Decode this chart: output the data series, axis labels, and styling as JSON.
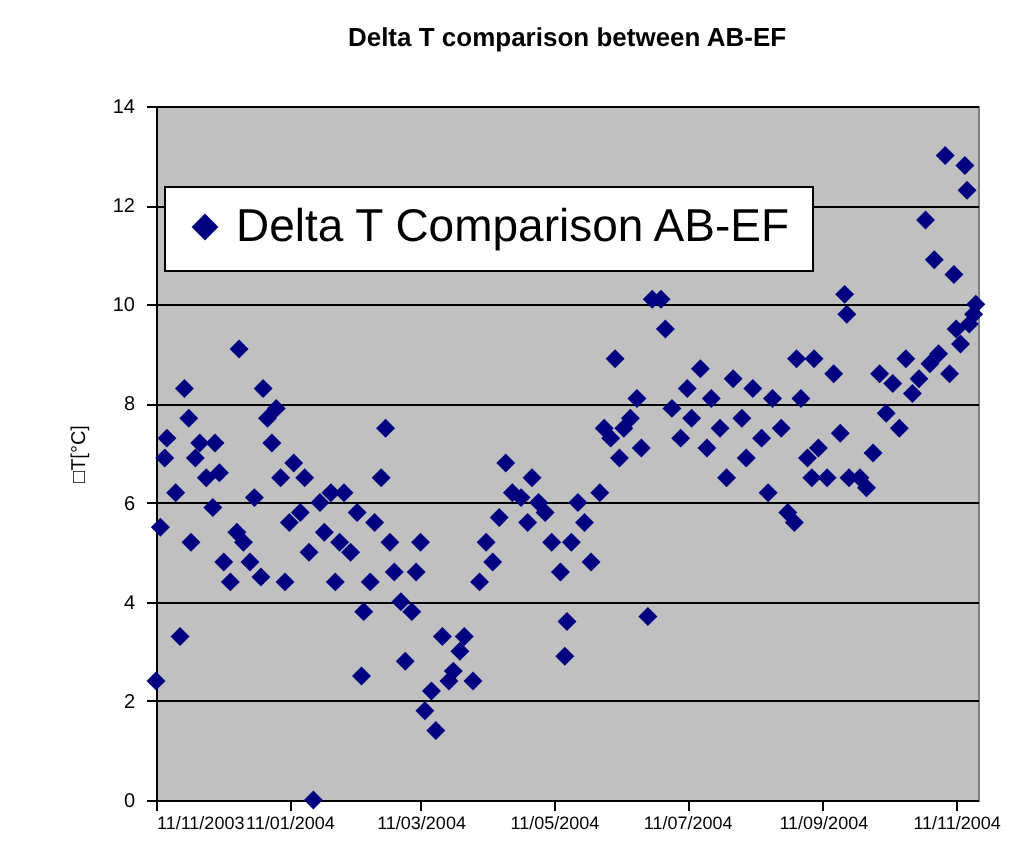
{
  "chart_data": {
    "type": "scatter",
    "title": "Delta T comparison between AB-EF",
    "ylabel": "□T[°C]",
    "xlim": [
      "2003-11-11",
      "2004-11-21"
    ],
    "xticks": [
      {
        "value": "2003-11-11",
        "label": "11/11/2003"
      },
      {
        "value": "2004-01-11",
        "label": "11/01/2004"
      },
      {
        "value": "2004-03-11",
        "label": "11/03/2004"
      },
      {
        "value": "2004-05-11",
        "label": "11/05/2004"
      },
      {
        "value": "2004-07-11",
        "label": "11/07/2004"
      },
      {
        "value": "2004-09-11",
        "label": "11/09/2004"
      },
      {
        "value": "2004-11-11",
        "label": "11/11/2004"
      }
    ],
    "ylim": [
      0,
      14
    ],
    "yticks": [
      0,
      2,
      4,
      6,
      8,
      10,
      12,
      14
    ],
    "grid": "y",
    "legend": "top left",
    "marker": "diamond",
    "series": [
      {
        "name": "Delta T Comparison AB-EF",
        "color": "#000080",
        "x": [
          "2003-11-11",
          "2003-11-13",
          "2003-11-15",
          "2003-11-16",
          "2003-11-20",
          "2003-11-22",
          "2003-11-24",
          "2003-11-26",
          "2003-11-27",
          "2003-11-29",
          "2003-12-01",
          "2003-12-04",
          "2003-12-07",
          "2003-12-08",
          "2003-12-10",
          "2003-12-12",
          "2003-12-15",
          "2003-12-18",
          "2003-12-19",
          "2003-12-21",
          "2003-12-24",
          "2003-12-26",
          "2003-12-29",
          "2003-12-30",
          "2004-01-01",
          "2004-01-03",
          "2004-01-05",
          "2004-01-07",
          "2004-01-09",
          "2004-01-11",
          "2004-01-13",
          "2004-01-16",
          "2004-01-18",
          "2004-01-20",
          "2004-01-22",
          "2004-01-25",
          "2004-01-27",
          "2004-01-30",
          "2004-02-01",
          "2004-02-03",
          "2004-02-05",
          "2004-02-08",
          "2004-02-11",
          "2004-02-13",
          "2004-02-14",
          "2004-02-17",
          "2004-02-19",
          "2004-02-22",
          "2004-02-24",
          "2004-02-26",
          "2004-02-28",
          "2004-03-02",
          "2004-03-04",
          "2004-03-07",
          "2004-03-09",
          "2004-03-11",
          "2004-03-13",
          "2004-03-16",
          "2004-03-18",
          "2004-03-21",
          "2004-03-24",
          "2004-03-26",
          "2004-03-29",
          "2004-03-31",
          "2004-04-04",
          "2004-04-07",
          "2004-04-10",
          "2004-04-13",
          "2004-04-16",
          "2004-04-19",
          "2004-04-22",
          "2004-04-26",
          "2004-04-29",
          "2004-05-01",
          "2004-05-04",
          "2004-05-07",
          "2004-05-10",
          "2004-05-14",
          "2004-05-16",
          "2004-05-17",
          "2004-05-19",
          "2004-05-22",
          "2004-05-25",
          "2004-05-28",
          "2004-06-01",
          "2004-06-03",
          "2004-06-06",
          "2004-06-08",
          "2004-06-10",
          "2004-06-12",
          "2004-06-15",
          "2004-06-18",
          "2004-06-20",
          "2004-06-23",
          "2004-06-25",
          "2004-06-29",
          "2004-07-01",
          "2004-07-04",
          "2004-07-08",
          "2004-07-11",
          "2004-07-13",
          "2004-07-17",
          "2004-07-20",
          "2004-07-22",
          "2004-07-26",
          "2004-07-29",
          "2004-08-01",
          "2004-08-05",
          "2004-08-07",
          "2004-08-10",
          "2004-08-14",
          "2004-08-17",
          "2004-08-19",
          "2004-08-23",
          "2004-08-26",
          "2004-08-29",
          "2004-08-30",
          "2004-09-01",
          "2004-09-04",
          "2004-09-06",
          "2004-09-07",
          "2004-09-09",
          "2004-09-13",
          "2004-09-16",
          "2004-09-19",
          "2004-09-21",
          "2004-09-22",
          "2004-09-23",
          "2004-09-28",
          "2004-10-01",
          "2004-10-04",
          "2004-10-07",
          "2004-10-10",
          "2004-10-13",
          "2004-10-16",
          "2004-10-19",
          "2004-10-22",
          "2004-10-25",
          "2004-10-28",
          "2004-10-30",
          "2004-11-01",
          "2004-11-03",
          "2004-11-06",
          "2004-11-08",
          "2004-11-10",
          "2004-11-11",
          "2004-11-13",
          "2004-11-15",
          "2004-11-16",
          "2004-11-17",
          "2004-11-19",
          "2004-11-20"
        ],
        "values": [
          2.4,
          5.5,
          6.9,
          7.3,
          6.2,
          3.3,
          8.3,
          7.7,
          5.2,
          6.9,
          7.2,
          6.5,
          5.9,
          7.2,
          6.6,
          4.8,
          4.4,
          5.4,
          9.1,
          5.2,
          4.8,
          6.1,
          4.5,
          8.3,
          7.7,
          7.2,
          7.9,
          6.5,
          4.4,
          5.6,
          6.8,
          5.8,
          6.5,
          5.0,
          0,
          6.0,
          5.4,
          6.2,
          4.4,
          5.2,
          6.2,
          5.0,
          5.8,
          2.5,
          3.8,
          4.4,
          5.6,
          6.5,
          7.5,
          5.2,
          4.6,
          4.0,
          2.8,
          3.8,
          4.6,
          5.2,
          1.8,
          2.2,
          1.4,
          3.3,
          2.4,
          2.6,
          3.0,
          3.3,
          2.4,
          4.4,
          5.2,
          4.8,
          5.7,
          6.8,
          6.2,
          6.1,
          5.6,
          6.5,
          6.0,
          5.8,
          5.2,
          4.6,
          2.9,
          3.6,
          5.2,
          6.0,
          5.6,
          4.8,
          6.2,
          7.5,
          7.3,
          8.9,
          6.9,
          7.5,
          7.7,
          8.1,
          7.1,
          3.7,
          10.1,
          10.1,
          9.5,
          7.9,
          7.3,
          8.3,
          7.7,
          8.7,
          7.1,
          8.1,
          7.5,
          6.5,
          8.5,
          7.7,
          6.9,
          8.3,
          7.3,
          6.2,
          8.1,
          7.5,
          5.8,
          5.6,
          8.9,
          8.1,
          6.9,
          6.5,
          8.9,
          7.1,
          6.5,
          8.6,
          7.4,
          10.2,
          9.8,
          6.5,
          6.5,
          6.3,
          7.0,
          8.6,
          7.8,
          8.4,
          7.5,
          8.9,
          8.2,
          8.5,
          11.7,
          8.8,
          10.9,
          9.0,
          13.0,
          8.6,
          10.6,
          9.5,
          9.2,
          12.8,
          12.3,
          9.6,
          9.8,
          10.0
        ]
      }
    ]
  }
}
